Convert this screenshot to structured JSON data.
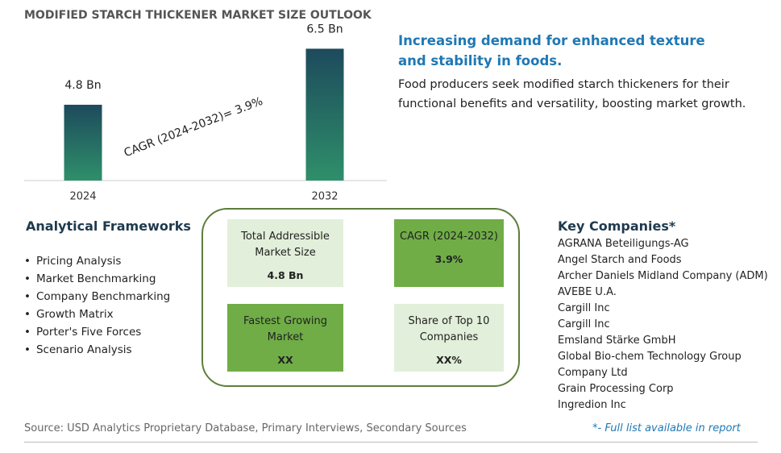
{
  "chart_data": {
    "type": "bar",
    "title": "MODIFIED STARCH THICKENER MARKET SIZE OUTLOOK",
    "categories": [
      "2024",
      "2032"
    ],
    "values": [
      4.8,
      6.5
    ],
    "value_labels": [
      "4.8 Bn",
      "6.5 Bn"
    ],
    "ylim": [
      2.5,
      7
    ],
    "colors": [
      "#1d4a5c",
      "#2f8f6a"
    ],
    "annotation": "CAGR (2024-2032)=  3.9%"
  },
  "headline": "Increasing demand for enhanced texture and stability in foods.",
  "description": "Food producers seek modified starch thickeners for their functional benefits and versatility, boosting market growth.",
  "frameworks": {
    "title": "Analytical Frameworks",
    "items": [
      "Pricing Analysis",
      "Market Benchmarking",
      "Company Benchmarking",
      "Growth Matrix",
      "Porter's Five Forces",
      "Scenario Analysis"
    ]
  },
  "summary": {
    "border": "#5d7d3c",
    "cells": [
      {
        "label": "Total Addressible Market Size",
        "value": "4.8 Bn",
        "fill": "#e2efda"
      },
      {
        "label": "CAGR (2024-2032)",
        "value": "3.9%",
        "fill": "#70ad47"
      },
      {
        "label": "Fastest Growing Market",
        "value": "XX",
        "fill": "#70ad47"
      },
      {
        "label": "Share of Top 10 Companies",
        "value": "XX%",
        "fill": "#e2efda"
      }
    ]
  },
  "companies": {
    "title": "Key Companies*",
    "items": [
      "AGRANA Beteiligungs-AG",
      "Angel Starch and Foods",
      "Archer Daniels Midland Company (ADM)",
      "AVEBE U.A.",
      "Cargill Inc",
      "Cargill Inc",
      "Emsland Stärke GmbH",
      "Global Bio-chem Technology Group Company Ltd",
      "Grain Processing Corp",
      "Ingredion Inc"
    ]
  },
  "source": "Source: USD Analytics Proprietary Database, Primary Interviews, Secondary Sources",
  "footnote": "*- Full list available in report"
}
